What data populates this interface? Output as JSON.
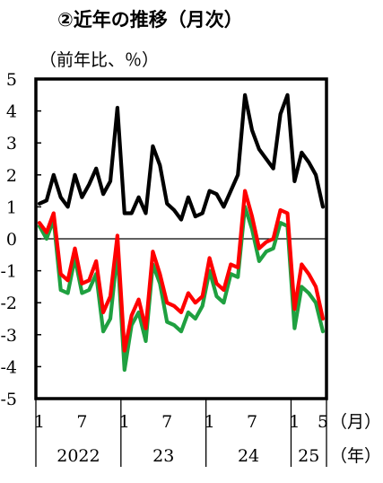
{
  "chart_data": {
    "type": "line",
    "title": "②近年の推移（月次）",
    "unit_label": "（前年比、％）",
    "ylim": [
      -5,
      5
    ],
    "yticks": [
      "5",
      "4",
      "3",
      "2",
      "1",
      "0",
      "-1",
      "-2",
      "-3",
      "-4",
      "-5"
    ],
    "month_ticks": [
      "1",
      "7",
      "1",
      "7",
      "1",
      "7",
      "1",
      "5"
    ],
    "month_suffix": "（月）",
    "year_labels": [
      "2022",
      "23",
      "24",
      "25"
    ],
    "year_suffix": "（年）",
    "start": "2022-01",
    "end": "2025-05",
    "series": [
      {
        "color": "#000000",
        "values": [
          1.1,
          1.2,
          2.0,
          1.3,
          1.0,
          2.0,
          1.3,
          1.7,
          2.2,
          1.4,
          1.8,
          4.1,
          0.8,
          0.8,
          1.3,
          0.8,
          2.9,
          2.3,
          1.1,
          0.9,
          0.6,
          1.3,
          0.7,
          0.8,
          1.5,
          1.4,
          1.0,
          1.5,
          2.0,
          4.5,
          3.4,
          2.8,
          2.5,
          2.2,
          3.9,
          4.5,
          1.8,
          2.7,
          2.4,
          2.0,
          1.0
        ]
      },
      {
        "color": "#ff0000",
        "values": [
          0.5,
          0.2,
          0.8,
          -1.1,
          -1.3,
          -0.3,
          -1.4,
          -1.3,
          -0.7,
          -2.3,
          -1.8,
          0.1,
          -3.5,
          -2.4,
          -1.9,
          -2.8,
          -0.4,
          -1.1,
          -2.0,
          -2.1,
          -2.3,
          -1.7,
          -2.0,
          -1.8,
          -0.6,
          -1.4,
          -1.6,
          -0.8,
          -0.9,
          1.5,
          0.7,
          -0.3,
          -0.1,
          0.0,
          0.9,
          0.8,
          -2.2,
          -0.8,
          -1.1,
          -1.5,
          -2.5
        ]
      },
      {
        "color": "#1fa040",
        "values": [
          0.4,
          0.0,
          0.6,
          -1.6,
          -1.7,
          -0.6,
          -1.7,
          -1.6,
          -1.1,
          -2.9,
          -2.5,
          -0.4,
          -4.1,
          -2.7,
          -2.3,
          -3.2,
          -0.8,
          -1.4,
          -2.6,
          -2.7,
          -2.9,
          -2.3,
          -2.5,
          -2.1,
          -1.0,
          -1.8,
          -2.0,
          -1.1,
          -1.2,
          1.0,
          0.3,
          -0.7,
          -0.4,
          -0.3,
          0.5,
          0.4,
          -2.8,
          -1.5,
          -1.7,
          -2.0,
          -2.9
        ]
      }
    ]
  }
}
